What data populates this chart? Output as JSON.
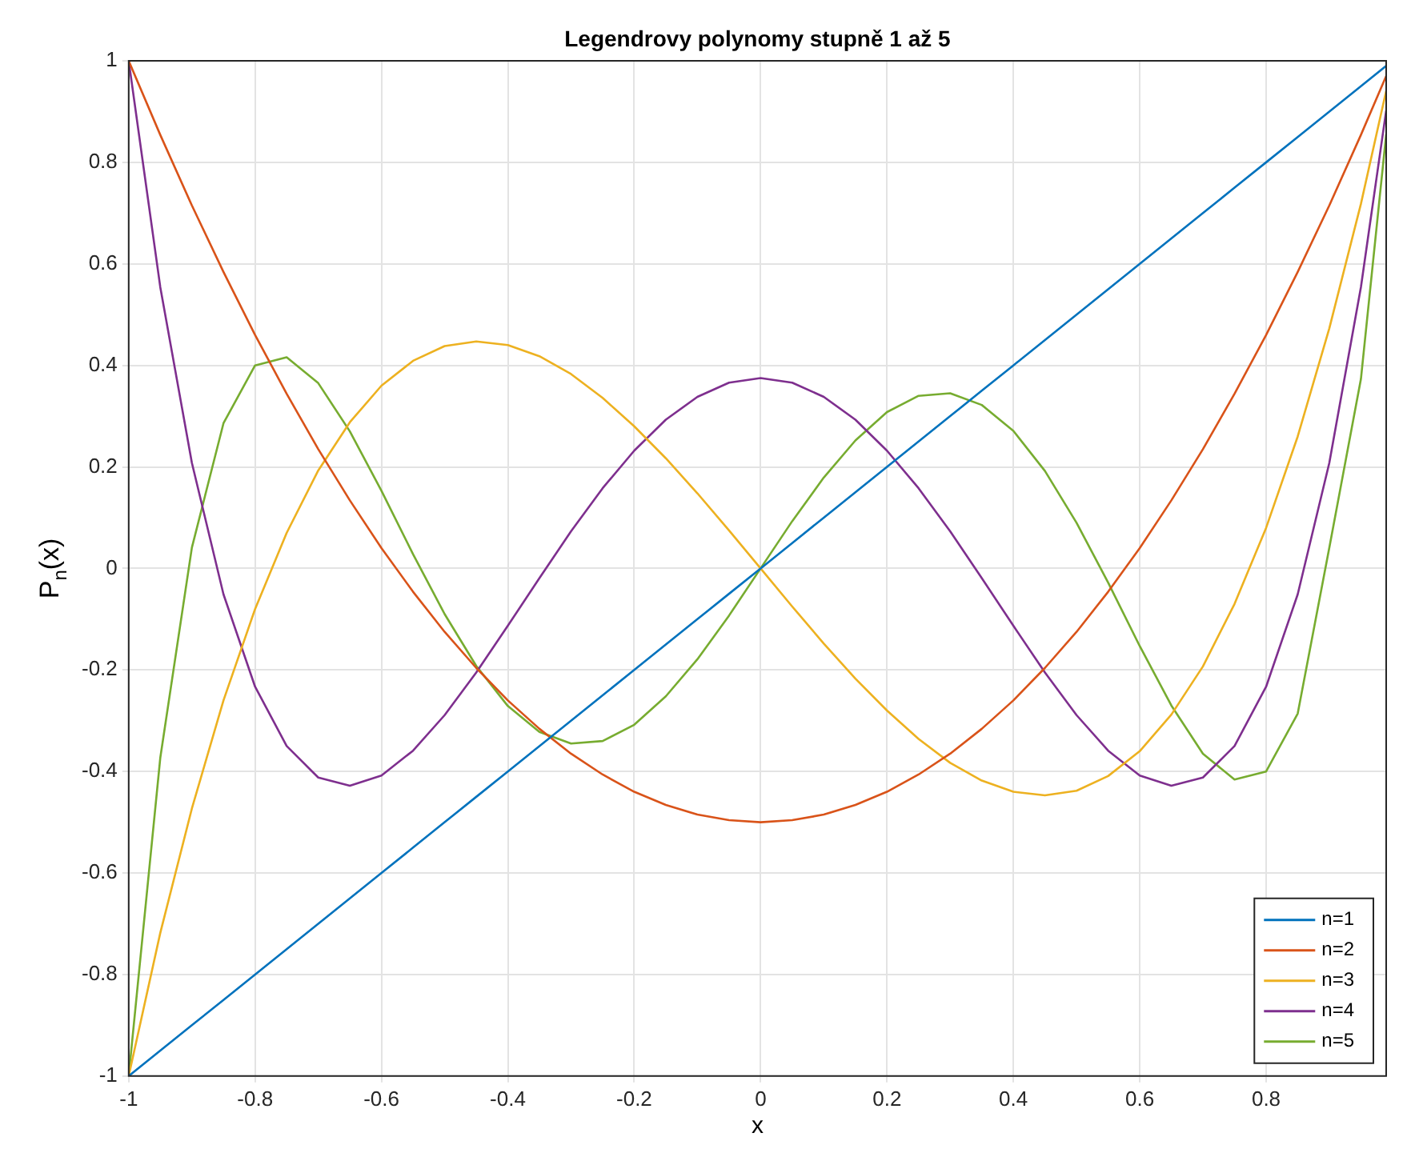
{
  "chart_data": {
    "type": "line",
    "title": "Legendrovy polynomy stupně 1 až 5",
    "xlabel": "x",
    "ylabel": "P$_{n}$(x)",
    "x": [
      -1,
      -0.95,
      -0.9,
      -0.85,
      -0.8,
      -0.75,
      -0.7,
      -0.65,
      -0.6,
      -0.55,
      -0.5,
      -0.45,
      -0.4,
      -0.35,
      -0.3,
      -0.25,
      -0.2,
      -0.15,
      -0.1,
      -0.05,
      0,
      0.05,
      0.1,
      0.15,
      0.2,
      0.25,
      0.3,
      0.35,
      0.4,
      0.45,
      0.5,
      0.55,
      0.6,
      0.65,
      0.7,
      0.75,
      0.8,
      0.85,
      0.9,
      0.95,
      0.99
    ],
    "series": [
      {
        "name": "n=1",
        "color": "#0072bd",
        "values": [
          -1,
          -0.95,
          -0.9,
          -0.85,
          -0.8,
          -0.75,
          -0.7,
          -0.65,
          -0.6,
          -0.55,
          -0.5,
          -0.45,
          -0.4,
          -0.35,
          -0.3,
          -0.25,
          -0.2,
          -0.15,
          -0.1,
          -0.05,
          0,
          0.05,
          0.1,
          0.15,
          0.2,
          0.25,
          0.3,
          0.35,
          0.4,
          0.45,
          0.5,
          0.55,
          0.6,
          0.65,
          0.7,
          0.75,
          0.8,
          0.85,
          0.9,
          0.95,
          0.99
        ]
      },
      {
        "name": "n=2",
        "color": "#d95319",
        "values": [
          1,
          0.854,
          0.715,
          0.584,
          0.46,
          0.344,
          0.235,
          0.134,
          0.04,
          -0.046,
          -0.125,
          -0.196,
          -0.26,
          -0.316,
          -0.365,
          -0.406,
          -0.44,
          -0.466,
          -0.485,
          -0.496,
          -0.5,
          -0.496,
          -0.485,
          -0.466,
          -0.44,
          -0.406,
          -0.365,
          -0.316,
          -0.26,
          -0.196,
          -0.125,
          -0.046,
          0.04,
          0.134,
          0.235,
          0.344,
          0.46,
          0.584,
          0.715,
          0.854,
          0.97
        ]
      },
      {
        "name": "n=3",
        "color": "#edb120",
        "values": [
          -1,
          -0.718,
          -0.473,
          -0.26,
          -0.08,
          0.07,
          0.193,
          0.288,
          0.36,
          0.409,
          0.438,
          0.447,
          0.44,
          0.418,
          0.383,
          0.336,
          0.28,
          0.217,
          0.148,
          0.075,
          0,
          -0.075,
          -0.148,
          -0.217,
          -0.28,
          -0.336,
          -0.383,
          -0.418,
          -0.44,
          -0.447,
          -0.438,
          -0.409,
          -0.36,
          -0.288,
          -0.193,
          -0.07,
          0.08,
          0.26,
          0.473,
          0.718,
          0.941
        ]
      },
      {
        "name": "n=4",
        "color": "#7e2f8e",
        "values": [
          1,
          0.554,
          0.208,
          -0.051,
          -0.233,
          -0.35,
          -0.412,
          -0.428,
          -0.408,
          -0.359,
          -0.289,
          -0.205,
          -0.113,
          -0.019,
          0.073,
          0.158,
          0.232,
          0.293,
          0.338,
          0.366,
          0.375,
          0.366,
          0.338,
          0.293,
          0.232,
          0.158,
          0.073,
          -0.019,
          -0.113,
          -0.205,
          -0.289,
          -0.359,
          -0.408,
          -0.428,
          -0.412,
          -0.35,
          -0.233,
          -0.051,
          0.208,
          0.554,
          0.902
        ]
      },
      {
        "name": "n=5",
        "color": "#77ac30",
        "values": [
          -1,
          -0.373,
          0.041,
          0.286,
          0.4,
          0.416,
          0.365,
          0.27,
          0.153,
          0.028,
          -0.09,
          -0.192,
          -0.271,
          -0.322,
          -0.345,
          -0.34,
          -0.308,
          -0.252,
          -0.179,
          -0.093,
          0,
          0.093,
          0.179,
          0.252,
          0.308,
          0.34,
          0.345,
          0.322,
          0.271,
          0.192,
          0.09,
          -0.028,
          -0.153,
          -0.27,
          -0.365,
          -0.416,
          -0.4,
          -0.286,
          0.041,
          0.373,
          0.855
        ]
      }
    ],
    "xlim": [
      -1,
      0.99
    ],
    "xticks": [
      -1,
      -0.8,
      -0.6,
      -0.4,
      -0.2,
      0,
      0.2,
      0.4,
      0.6,
      0.8
    ],
    "ylim": [
      -1,
      1
    ],
    "yticks": [
      -1,
      -0.8,
      -0.6,
      -0.4,
      -0.2,
      0,
      0.2,
      0.4,
      0.6,
      0.8,
      1
    ],
    "grid": true,
    "legend": "bottom right",
    "marker": "none",
    "line_style": "solid"
  }
}
